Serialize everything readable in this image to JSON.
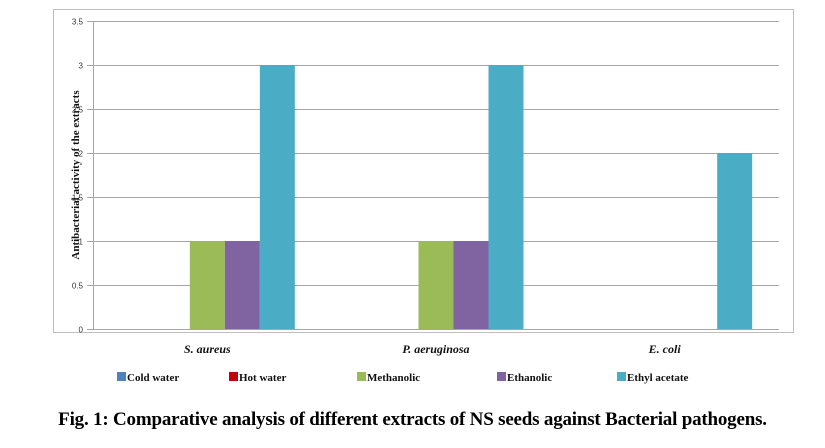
{
  "chart_data": {
    "type": "bar",
    "title": "",
    "xlabel": "",
    "ylabel": "Antibacterial activity of the extracts",
    "ylim": [
      0,
      3.5
    ],
    "yticks": [
      "0",
      "0.5",
      "1",
      "1.5",
      "2",
      "2.5",
      "3",
      "3.5"
    ],
    "ytick_values": [
      0,
      0.5,
      1,
      1.5,
      2,
      2.5,
      3,
      3.5
    ],
    "grid": true,
    "legend_position": "bottom",
    "categories": [
      "S. aureus",
      "P. aeruginosa",
      "E. coli"
    ],
    "series": [
      {
        "name": "Cold water",
        "color": "#4F81BD",
        "values": [
          0,
          0,
          0
        ]
      },
      {
        "name": "Hot water",
        "color": "#C0000B",
        "values": [
          0,
          0,
          0
        ]
      },
      {
        "name": "Methanolic",
        "color": "#9BBB59",
        "values": [
          1,
          1,
          0
        ]
      },
      {
        "name": "Ethanolic",
        "color": "#8064A2",
        "values": [
          1,
          1,
          0
        ]
      },
      {
        "name": "Ethyl acetate",
        "color": "#4BACC6",
        "values": [
          3,
          3,
          2
        ]
      }
    ],
    "legend_labels_as_rendered": [
      "Cold water",
      "Hot water",
      "Methanolic",
      "Ethanolic",
      "Ethyl acetate"
    ]
  },
  "caption": "Fig. 1: Comparative analysis of different extracts of NS seeds against Bacterial pathogens."
}
